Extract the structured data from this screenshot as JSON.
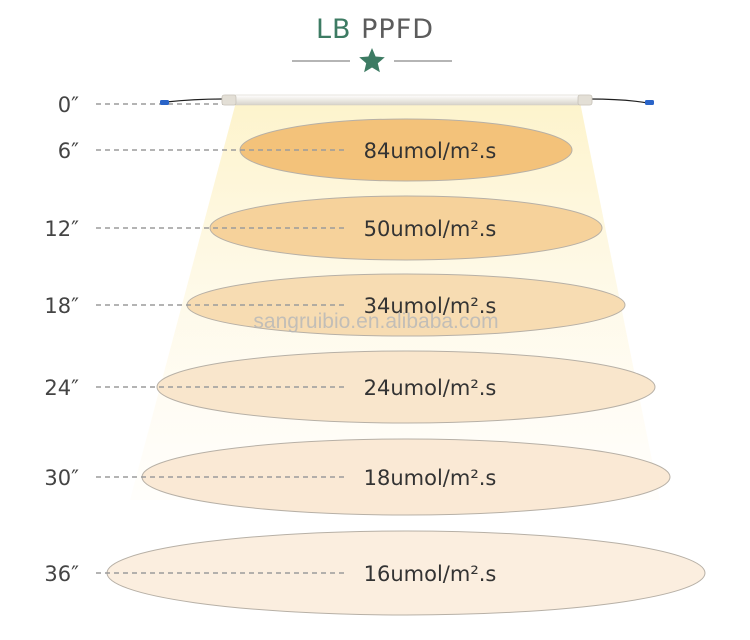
{
  "title": {
    "brand": "LB",
    "word": "PPFD"
  },
  "watermark": "sangruibio.en.alibaba.com",
  "colors": {
    "brand_green": "#3d7b63",
    "label_gray": "#444444",
    "dash_gray": "#9b9b9b"
  },
  "icons": {
    "title_ornament": "star-icon",
    "fixture": "led-tube-light-icon"
  },
  "levels": [
    {
      "distance": "0″",
      "ppfd": ""
    },
    {
      "distance": "6″",
      "ppfd": "84umol/m².s",
      "fill": "#f3c27a"
    },
    {
      "distance": "12″",
      "ppfd": "50umol/m².s",
      "fill": "#f6d29b"
    },
    {
      "distance": "18″",
      "ppfd": "34umol/m².s",
      "fill": "#f7dcb2"
    },
    {
      "distance": "24″",
      "ppfd": "24umol/m².s",
      "fill": "#f9e6cc"
    },
    {
      "distance": "30″",
      "ppfd": "18umol/m².s",
      "fill": "#fae9d5"
    },
    {
      "distance": "36″",
      "ppfd": "16umol/m².s",
      "fill": "#fbeedf"
    }
  ]
}
